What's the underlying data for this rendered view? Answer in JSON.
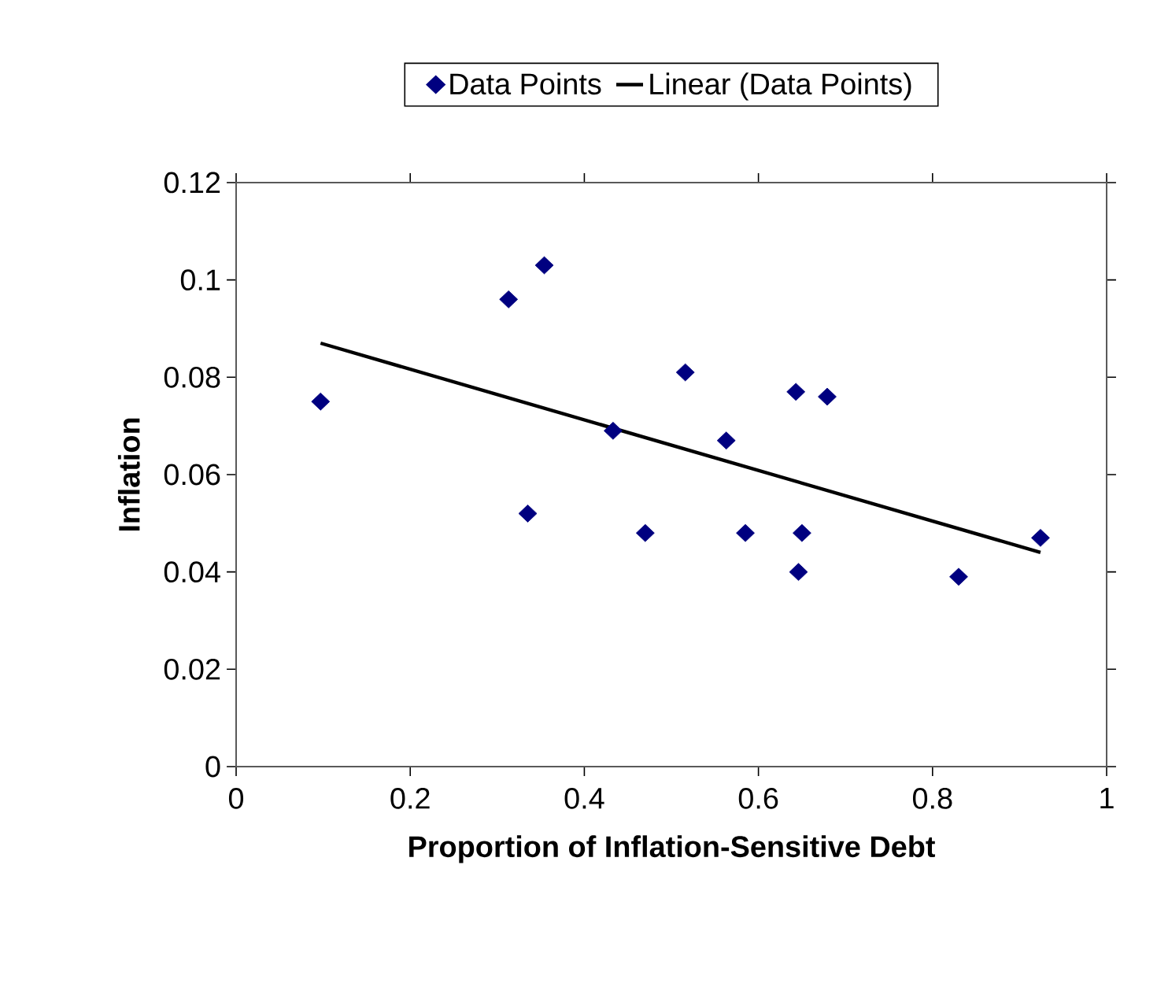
{
  "chart_data": {
    "type": "scatter",
    "xlabel": "Proportion of Inflation-Sensitive Debt",
    "ylabel": "Inflation",
    "xlim": [
      0,
      1
    ],
    "ylim": [
      0,
      0.12
    ],
    "xticks": [
      0,
      0.2,
      0.4,
      0.6,
      0.8,
      1
    ],
    "yticks": [
      0,
      0.02,
      0.04,
      0.06,
      0.08,
      0.1,
      0.12
    ],
    "legend": "top",
    "grid": false,
    "series": [
      {
        "name": "Data Points",
        "marker": "diamond",
        "color": "#000080",
        "x": [
          0.097,
          0.313,
          0.354,
          0.335,
          0.433,
          0.47,
          0.516,
          0.563,
          0.585,
          0.643,
          0.679,
          0.65,
          0.646,
          0.83,
          0.924
        ],
        "values": [
          0.075,
          0.096,
          0.103,
          0.052,
          0.069,
          0.048,
          0.081,
          0.067,
          0.048,
          0.077,
          0.076,
          0.048,
          0.04,
          0.039,
          0.047
        ]
      },
      {
        "name": "Linear (Data Points)",
        "type": "line",
        "marker": "none",
        "color": "#000000",
        "x": [
          0.097,
          0.924
        ],
        "values": [
          0.087,
          0.044
        ]
      }
    ]
  }
}
